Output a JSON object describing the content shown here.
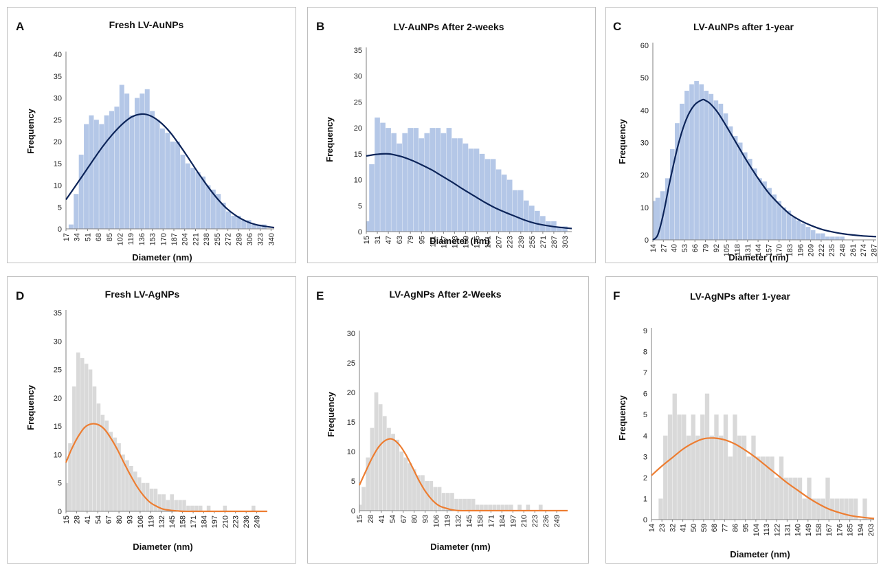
{
  "chart_data": [
    {
      "panel_label": "A",
      "type": "bar",
      "title": "Fresh LV-AuNPs",
      "xlabel": "Diameter (nm)",
      "ylabel": "Frequency",
      "ylim": [
        0,
        40
      ],
      "yticks": [
        0,
        5,
        10,
        15,
        20,
        25,
        30,
        35,
        40
      ],
      "x_start": 17,
      "x_end": 345,
      "xtick_labels": [
        17,
        34,
        51,
        68,
        85,
        102,
        119,
        136,
        153,
        170,
        187,
        204,
        221,
        238,
        255,
        272,
        289,
        306,
        323,
        340
      ],
      "bar_color": "#b4c7e7",
      "curve_color": "#0c2459",
      "histogram": {
        "x": [
          17,
          25,
          33,
          41,
          49,
          57,
          65,
          73,
          81,
          89,
          97,
          105,
          113,
          121,
          129,
          137,
          145,
          153,
          161,
          169,
          177,
          185,
          193,
          201,
          209,
          217,
          225,
          233,
          241,
          249,
          257,
          265,
          273,
          281,
          289,
          297,
          305,
          313,
          321,
          329,
          337,
          345
        ],
        "y": [
          0,
          1,
          8,
          17,
          24,
          26,
          25,
          24,
          26,
          27,
          28,
          33,
          31,
          26,
          30,
          31,
          32,
          27,
          25,
          23,
          22,
          20,
          20,
          17,
          15,
          14,
          13,
          12,
          10,
          9,
          8,
          6,
          4,
          3,
          3,
          2,
          2,
          1,
          1,
          1,
          0,
          0
        ]
      },
      "fit_curve": {
        "x": [
          17,
          30,
          45,
          60,
          75,
          90,
          105,
          120,
          136,
          150,
          165,
          180,
          195,
          210,
          225,
          240,
          255,
          270,
          285,
          300,
          315,
          330,
          345
        ],
        "y": [
          6.7,
          9.4,
          12.6,
          15.8,
          18.9,
          21.6,
          23.9,
          25.6,
          26.3,
          25.9,
          24.5,
          22.3,
          19.4,
          16.2,
          12.9,
          9.8,
          7.0,
          4.7,
          3.0,
          1.8,
          1.0,
          0.6,
          0.3
        ]
      }
    },
    {
      "panel_label": "B",
      "type": "bar",
      "title": "LV-AuNPs  After 2-weeks",
      "xlabel": "Diameter (nm)",
      "ylabel": "Frequency",
      "ylim": [
        0,
        35
      ],
      "yticks": [
        0,
        5,
        10,
        15,
        20,
        25,
        30,
        35
      ],
      "x_start": 15,
      "x_end": 313,
      "xtick_labels": [
        15,
        31,
        47,
        63,
        79,
        95,
        111,
        127,
        143,
        159,
        175,
        191,
        207,
        223,
        239,
        255,
        271,
        287,
        303
      ],
      "bar_color": "#b4c7e7",
      "curve_color": "#0c2459",
      "histogram": {
        "x": [
          15,
          23,
          31,
          39,
          47,
          55,
          63,
          71,
          79,
          87,
          95,
          103,
          111,
          119,
          127,
          135,
          143,
          151,
          159,
          167,
          175,
          183,
          191,
          199,
          207,
          215,
          223,
          231,
          239,
          247,
          255,
          263,
          271,
          279,
          287,
          295,
          303,
          311
        ],
        "y": [
          2,
          13,
          22,
          21,
          20,
          19,
          17,
          19,
          20,
          20,
          18,
          19,
          20,
          20,
          19,
          20,
          18,
          18,
          17,
          16,
          16,
          15,
          14,
          14,
          12,
          11,
          10,
          8,
          8,
          6,
          5,
          4,
          3,
          2,
          2,
          1,
          1,
          0
        ]
      },
      "fit_curve": {
        "x": [
          15,
          30,
          47,
          65,
          80,
          95,
          110,
          125,
          140,
          155,
          170,
          185,
          200,
          215,
          230,
          245,
          260,
          275,
          290,
          313
        ],
        "y": [
          14.6,
          14.9,
          15.0,
          14.5,
          13.8,
          12.9,
          11.9,
          10.7,
          9.5,
          8.2,
          7.0,
          5.8,
          4.7,
          3.8,
          3.0,
          2.2,
          1.6,
          1.2,
          0.9,
          0.6
        ]
      }
    },
    {
      "panel_label": "C",
      "type": "bar",
      "title": "LV-AuNPs  after 1-year",
      "xlabel": "Diameter (nm)",
      "ylabel": "Frequency",
      "ylim": [
        0,
        60
      ],
      "yticks": [
        0,
        10,
        20,
        30,
        40,
        50,
        60
      ],
      "x_start": 14,
      "x_end": 290,
      "xtick_labels": [
        14,
        27,
        40,
        53,
        66,
        79,
        92,
        105,
        118,
        131,
        144,
        157,
        170,
        183,
        196,
        209,
        222,
        235,
        248,
        261,
        274,
        287
      ],
      "bar_color": "#b4c7e7",
      "curve_color": "#0c2459",
      "histogram": {
        "x": [
          14,
          20,
          26,
          32,
          38,
          44,
          50,
          56,
          62,
          68,
          74,
          80,
          86,
          92,
          98,
          104,
          110,
          116,
          122,
          128,
          134,
          140,
          146,
          152,
          158,
          164,
          170,
          176,
          182,
          188,
          194,
          200,
          206,
          212,
          218,
          224,
          230,
          236,
          242,
          248,
          254,
          260,
          266,
          272,
          278,
          284,
          290
        ],
        "y": [
          12,
          13,
          15,
          19,
          28,
          36,
          42,
          46,
          48,
          49,
          48,
          46,
          45,
          43,
          42,
          39,
          35,
          32,
          30,
          27,
          25,
          22,
          19,
          18,
          16,
          14,
          12,
          10,
          9,
          7,
          6,
          5,
          4,
          3,
          2,
          2,
          1,
          1,
          1,
          1,
          0,
          0,
          0,
          0,
          0,
          0,
          0
        ]
      },
      "fit_curve": {
        "x": [
          14,
          20,
          27,
          35,
          45,
          55,
          65,
          75,
          79,
          85,
          95,
          105,
          118,
          131,
          144,
          157,
          170,
          183,
          196,
          209,
          222,
          235,
          248,
          261,
          274,
          290
        ],
        "y": [
          0,
          1.5,
          8.0,
          18.0,
          29.0,
          37.0,
          41.5,
          43.2,
          43.0,
          42.0,
          39.0,
          35.0,
          29.5,
          24.0,
          19.0,
          14.5,
          11.0,
          8.0,
          6.0,
          4.5,
          3.3,
          2.5,
          1.9,
          1.5,
          1.2,
          1.0
        ]
      }
    },
    {
      "panel_label": "D",
      "type": "bar",
      "title": "Fresh LV-AgNPs",
      "xlabel": "Diameter (nm)",
      "ylabel": "Frequency",
      "ylim": [
        0,
        35
      ],
      "yticks": [
        0,
        5,
        10,
        15,
        20,
        25,
        30,
        35
      ],
      "x_start": 15,
      "x_end": 262,
      "xtick_labels": [
        15,
        28,
        41,
        54,
        67,
        80,
        93,
        106,
        119,
        132,
        145,
        158,
        171,
        184,
        197,
        210,
        223,
        236,
        249
      ],
      "bar_color": "#d9d9d9",
      "curve_color": "#ed7d31",
      "histogram": {
        "x": [
          15,
          20,
          25,
          30,
          35,
          40,
          45,
          50,
          55,
          60,
          65,
          70,
          75,
          80,
          85,
          90,
          95,
          100,
          105,
          110,
          115,
          120,
          125,
          130,
          135,
          140,
          145,
          150,
          155,
          160,
          165,
          170,
          175,
          180,
          185,
          190,
          195,
          200,
          205,
          210,
          215,
          220,
          225,
          230,
          235,
          240,
          245,
          250,
          255,
          260
        ],
        "y": [
          5,
          12,
          22,
          28,
          27,
          26,
          25,
          22,
          19,
          17,
          16,
          14,
          13,
          12,
          10,
          9,
          8,
          7,
          6,
          5,
          5,
          4,
          4,
          3,
          3,
          2,
          3,
          2,
          2,
          2,
          1,
          1,
          1,
          1,
          0,
          1,
          0,
          0,
          0,
          1,
          0,
          0,
          0,
          0,
          0,
          0,
          1,
          0,
          0,
          0
        ]
      },
      "fit_curve": {
        "x": [
          15,
          22,
          30,
          38,
          46,
          54,
          62,
          70,
          78,
          86,
          94,
          102,
          110,
          118,
          126,
          134,
          142,
          150,
          160,
          175,
          190,
          210,
          230,
          262
        ],
        "y": [
          8.6,
          11.0,
          13.2,
          14.8,
          15.4,
          15.3,
          14.5,
          12.9,
          10.9,
          8.6,
          6.4,
          4.4,
          2.8,
          1.6,
          0.9,
          0.4,
          0.2,
          0.1,
          0,
          0,
          0,
          0,
          0,
          0
        ]
      }
    },
    {
      "panel_label": "E",
      "type": "bar",
      "title": "LV-AgNPs  After 2-Weeks",
      "xlabel": "Diameter (nm)",
      "ylabel": "Frequency",
      "ylim": [
        0,
        30
      ],
      "yticks": [
        0,
        5,
        10,
        15,
        20,
        25,
        30
      ],
      "x_start": 15,
      "x_end": 262,
      "xtick_labels": [
        15,
        28,
        41,
        54,
        67,
        80,
        93,
        106,
        119,
        132,
        145,
        158,
        171,
        184,
        197,
        210,
        223,
        236,
        249
      ],
      "bar_color": "#d9d9d9",
      "curve_color": "#ed7d31",
      "histogram": {
        "x": [
          15,
          20,
          25,
          30,
          35,
          40,
          45,
          50,
          55,
          60,
          65,
          70,
          75,
          80,
          85,
          90,
          95,
          100,
          105,
          110,
          115,
          120,
          125,
          130,
          135,
          140,
          145,
          150,
          155,
          160,
          165,
          170,
          175,
          180,
          185,
          190,
          195,
          200,
          205,
          210,
          215,
          220,
          225,
          230,
          235,
          240,
          245,
          250,
          255,
          260
        ],
        "y": [
          1,
          4,
          9,
          14,
          20,
          18,
          16,
          14,
          13,
          12,
          10,
          9,
          8,
          7,
          6,
          6,
          5,
          5,
          4,
          4,
          3,
          3,
          3,
          2,
          2,
          2,
          2,
          2,
          1,
          1,
          1,
          1,
          1,
          1,
          1,
          1,
          1,
          0,
          1,
          0,
          1,
          0,
          0,
          1,
          0,
          0,
          0,
          0,
          0,
          0
        ]
      },
      "fit_curve": {
        "x": [
          15,
          22,
          30,
          38,
          46,
          54,
          62,
          70,
          78,
          86,
          94,
          102,
          110,
          118,
          126,
          134,
          150,
          170,
          200,
          230,
          262
        ],
        "y": [
          4.3,
          6.5,
          8.9,
          10.8,
          11.9,
          12.1,
          11.2,
          9.5,
          7.3,
          5.0,
          3.1,
          1.7,
          0.8,
          0.4,
          0.1,
          0,
          0,
          0,
          0,
          0,
          0
        ]
      }
    },
    {
      "panel_label": "F",
      "type": "bar",
      "title": "LV-AgNPs  after 1-year",
      "xlabel": "Diameter (nm)",
      "ylabel": "Frequency",
      "ylim": [
        0,
        9
      ],
      "yticks": [
        0,
        1,
        2,
        3,
        4,
        5,
        6,
        7,
        8,
        9
      ],
      "x_start": 14,
      "x_end": 206,
      "xtick_labels": [
        14,
        23,
        32,
        41,
        50,
        59,
        68,
        77,
        86,
        95,
        104,
        113,
        122,
        131,
        140,
        149,
        158,
        167,
        176,
        185,
        194,
        203
      ],
      "bar_color": "#d9d9d9",
      "curve_color": "#ed7d31",
      "histogram": {
        "x": [
          14,
          18,
          22,
          26,
          30,
          34,
          38,
          42,
          46,
          50,
          54,
          58,
          62,
          66,
          70,
          74,
          78,
          82,
          86,
          90,
          94,
          98,
          102,
          106,
          110,
          114,
          118,
          122,
          126,
          130,
          134,
          138,
          142,
          146,
          150,
          154,
          158,
          162,
          166,
          170,
          174,
          178,
          182,
          186,
          190,
          194,
          198,
          202
        ],
        "y": [
          0,
          0,
          1,
          4,
          5,
          6,
          5,
          5,
          4,
          5,
          4,
          5,
          6,
          4,
          5,
          4,
          5,
          3,
          5,
          4,
          4,
          3,
          4,
          3,
          3,
          3,
          3,
          2,
          3,
          2,
          2,
          2,
          2,
          1,
          2,
          1,
          1,
          1,
          2,
          1,
          1,
          1,
          1,
          1,
          1,
          0,
          1,
          0
        ]
      },
      "fit_curve": {
        "x": [
          14,
          23,
          32,
          41,
          50,
          59,
          68,
          77,
          86,
          95,
          104,
          113,
          122,
          131,
          140,
          149,
          158,
          167,
          176,
          185,
          194,
          206
        ],
        "y": [
          2.1,
          2.55,
          2.95,
          3.35,
          3.65,
          3.85,
          3.88,
          3.8,
          3.6,
          3.3,
          2.95,
          2.55,
          2.15,
          1.75,
          1.4,
          1.05,
          0.75,
          0.5,
          0.33,
          0.2,
          0.12,
          0.05
        ]
      }
    }
  ]
}
